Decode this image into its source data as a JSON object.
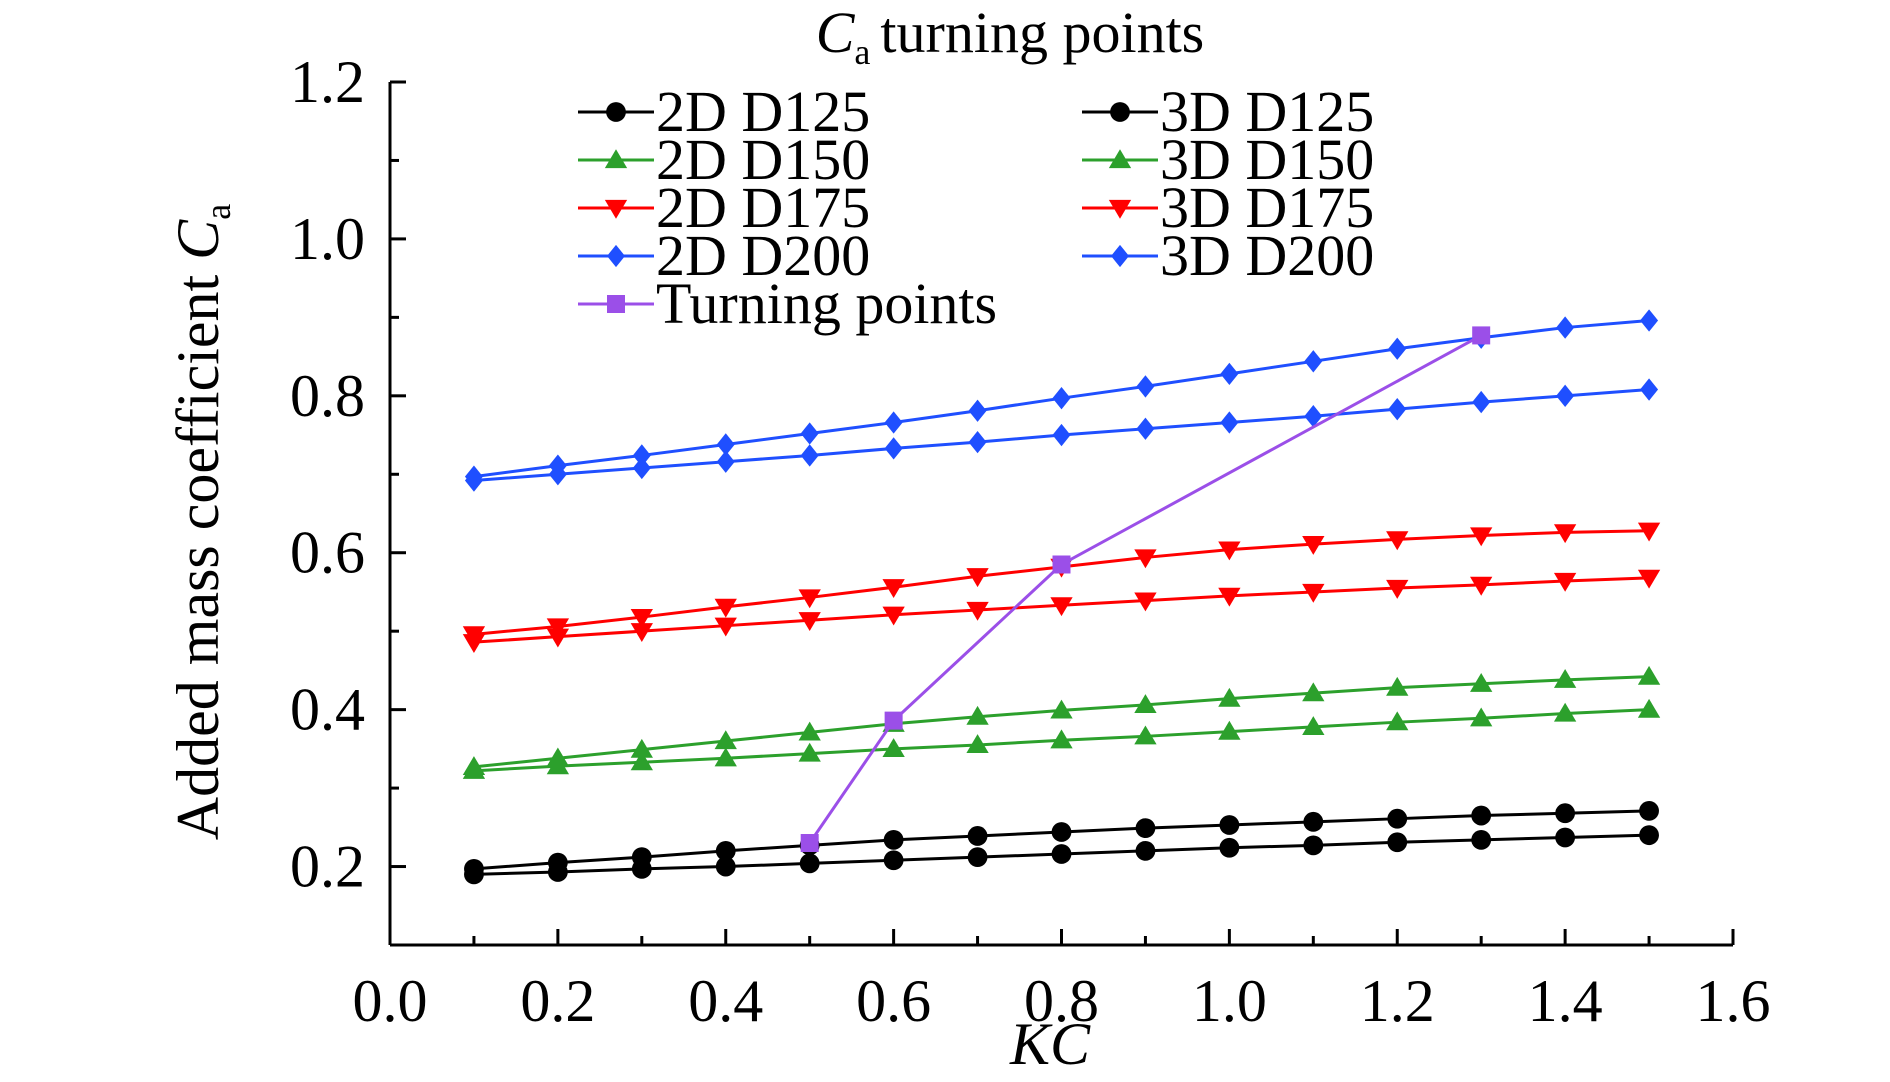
{
  "chart_data": {
    "type": "line",
    "title": {
      "main": "C",
      "subscript": "a",
      "rest": "turning points"
    },
    "xlabel": "KC",
    "ylabel": {
      "main": "Added mass coefficient ",
      "symbol": "C",
      "subscript": "a"
    },
    "xlim": [
      0.0,
      1.6
    ],
    "ylim": [
      0.1,
      1.2
    ],
    "x_ticks": [
      "0.0",
      "0.2",
      "0.4",
      "0.6",
      "0.8",
      "1.0",
      "1.2",
      "1.4",
      "1.6"
    ],
    "y_ticks": [
      "0.2",
      "0.4",
      "0.6",
      "0.8",
      "1.0",
      "1.2"
    ],
    "x_tick_values": [
      0.0,
      0.2,
      0.4,
      0.6,
      0.8,
      1.0,
      1.2,
      1.4,
      1.6
    ],
    "y_tick_values": [
      0.2,
      0.4,
      0.6,
      0.8,
      1.0,
      1.2
    ],
    "grid": false,
    "legend_placement": "top",
    "x": [
      0.1,
      0.2,
      0.3,
      0.4,
      0.5,
      0.6,
      0.7,
      0.8,
      0.9,
      1.0,
      1.1,
      1.2,
      1.3,
      1.4,
      1.5
    ],
    "series": [
      {
        "name": "2D D125",
        "color": "#000000",
        "marker": "circle",
        "values": [
          0.19,
          0.193,
          0.197,
          0.2,
          0.204,
          0.208,
          0.212,
          0.216,
          0.22,
          0.224,
          0.227,
          0.231,
          0.234,
          0.237,
          0.24
        ]
      },
      {
        "name": "3D D125",
        "color": "#000000",
        "marker": "circle",
        "values": [
          0.197,
          0.205,
          0.212,
          0.22,
          0.227,
          0.234,
          0.239,
          0.244,
          0.249,
          0.253,
          0.257,
          0.261,
          0.265,
          0.268,
          0.271
        ]
      },
      {
        "name": "2D D150",
        "color": "#2ca02c",
        "marker": "triangle-up",
        "values": [
          0.322,
          0.328,
          0.333,
          0.338,
          0.344,
          0.35,
          0.355,
          0.361,
          0.366,
          0.372,
          0.378,
          0.384,
          0.389,
          0.395,
          0.4
        ]
      },
      {
        "name": "3D D150",
        "color": "#2ca02c",
        "marker": "triangle-up",
        "values": [
          0.327,
          0.338,
          0.349,
          0.36,
          0.371,
          0.382,
          0.391,
          0.399,
          0.406,
          0.414,
          0.421,
          0.428,
          0.433,
          0.438,
          0.442
        ]
      },
      {
        "name": "2D D175",
        "color": "#ff0000",
        "marker": "triangle-down",
        "values": [
          0.486,
          0.493,
          0.5,
          0.507,
          0.514,
          0.521,
          0.527,
          0.533,
          0.539,
          0.545,
          0.55,
          0.555,
          0.559,
          0.564,
          0.568
        ]
      },
      {
        "name": "3D D175",
        "color": "#ff0000",
        "marker": "triangle-down",
        "values": [
          0.496,
          0.506,
          0.518,
          0.531,
          0.543,
          0.556,
          0.57,
          0.582,
          0.594,
          0.604,
          0.611,
          0.617,
          0.622,
          0.626,
          0.628
        ]
      },
      {
        "name": "2D D200",
        "color": "#1f4fff",
        "marker": "diamond",
        "values": [
          0.692,
          0.7,
          0.708,
          0.716,
          0.724,
          0.733,
          0.741,
          0.75,
          0.758,
          0.766,
          0.774,
          0.783,
          0.792,
          0.8,
          0.808
        ]
      },
      {
        "name": "3D D200",
        "color": "#1f4fff",
        "marker": "diamond",
        "values": [
          0.697,
          0.711,
          0.724,
          0.738,
          0.752,
          0.766,
          0.781,
          0.797,
          0.812,
          0.828,
          0.844,
          0.86,
          0.874,
          0.887,
          0.896
        ]
      },
      {
        "name": "Turning points",
        "color": "#9b4fe8",
        "marker": "square",
        "x": [
          0.5,
          0.6,
          0.8,
          1.3
        ],
        "values": [
          0.23,
          0.386,
          0.585,
          0.877
        ]
      }
    ]
  }
}
